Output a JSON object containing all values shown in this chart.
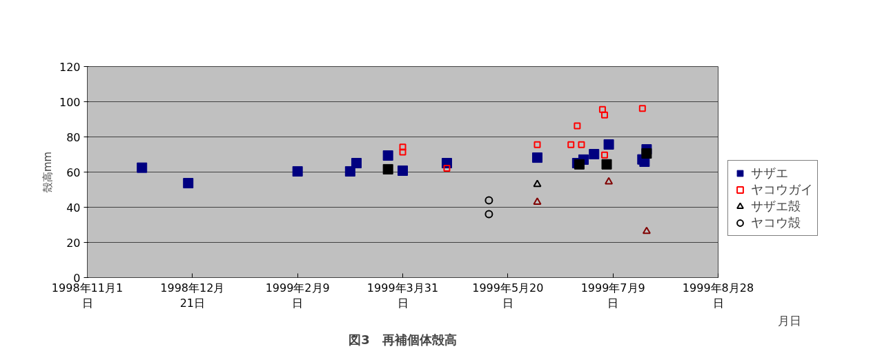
{
  "chart_data": {
    "type": "scatter",
    "title": "図3　再補個体殻高",
    "xlabel": "月日",
    "ylabel": "殻高mm",
    "xlim": [
      "1998-11-01",
      "1999-08-28"
    ],
    "xticks": [
      {
        "value": "1998-11-01",
        "label": "1998年11月1\n日"
      },
      {
        "value": "1998-12-21",
        "label": "1998年12月\n21日"
      },
      {
        "value": "1999-02-09",
        "label": "1999年2月9\n日"
      },
      {
        "value": "1999-03-31",
        "label": "1999年3月31\n日"
      },
      {
        "value": "1999-05-20",
        "label": "1999年5月20\n日"
      },
      {
        "value": "1999-07-09",
        "label": "1999年7月9\n日"
      },
      {
        "value": "1999-08-28",
        "label": "1999年8月28\n日"
      }
    ],
    "ylim": [
      0,
      120
    ],
    "yticks": [
      0,
      20,
      40,
      60,
      80,
      100,
      120
    ],
    "grid": "y",
    "legend": "right",
    "series": [
      {
        "name": "サザエ",
        "marker": "square",
        "color": "#000080",
        "x": [
          "1998-11-27",
          "1998-12-19",
          "1999-02-09",
          "1999-03-06",
          "1999-03-09",
          "1999-03-24",
          "1999-03-31",
          "1999-04-21",
          "1999-06-03",
          "1999-06-22",
          "1999-06-25",
          "1999-06-30",
          "1999-07-07",
          "1999-07-23",
          "1999-07-24",
          "1999-07-25"
        ],
        "values": [
          62.5,
          53.7,
          60.4,
          60.4,
          65.1,
          69.4,
          60.8,
          65.1,
          68.2,
          65.1,
          67.1,
          70.2,
          75.7,
          67.2,
          65.9,
          72.9
        ]
      },
      {
        "marker": "square",
        "color": "#000000",
        "x": [
          "1999-03-24",
          "1999-06-23",
          "1999-07-06",
          "1999-07-25"
        ],
        "values": [
          61.6,
          64.4,
          64.4,
          70.6
        ]
      },
      {
        "name": "ヤコウガイ",
        "marker": "square",
        "color": "#ff0000",
        "x": [
          "1999-03-31",
          "1999-03-31",
          "1999-04-21",
          "1999-06-03",
          "1999-06-19",
          "1999-06-22",
          "1999-06-24",
          "1999-07-04",
          "1999-07-05",
          "1999-07-05",
          "1999-07-23"
        ],
        "values": [
          74.2,
          71.4,
          62.2,
          75.6,
          75.6,
          86.3,
          75.6,
          95.6,
          92.5,
          69.7,
          96.2
        ]
      },
      {
        "name": "サザエ殻",
        "marker": "triangle",
        "color": "#000000",
        "colors": [
          "#000000",
          "#800000",
          "#800000",
          "#800000"
        ],
        "x": [
          "1999-06-03",
          "1999-06-03",
          "1999-07-07",
          "1999-07-25"
        ],
        "values": [
          53.0,
          42.9,
          54.5,
          26.3
        ]
      },
      {
        "name": "ヤコウ殻",
        "marker": "circle",
        "color": "#000000",
        "x": [
          "1999-05-11",
          "1999-05-11"
        ],
        "values": [
          43.9,
          36.1
        ]
      }
    ]
  }
}
